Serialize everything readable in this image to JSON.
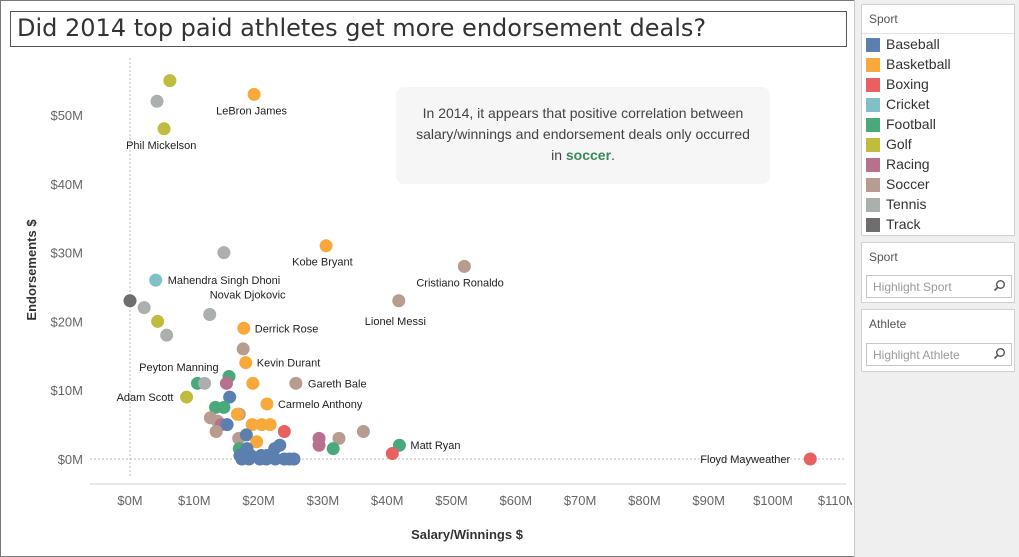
{
  "title": "Did 2014 top paid athletes get more endorsement deals?",
  "note": {
    "line1": "In 2014, it appears that positive correlation between",
    "line2": "salary/winnings and endorsement deals only occurred",
    "line3_pre": "in ",
    "line3_highlight": "soccer",
    "line3_post": "."
  },
  "legend": {
    "title": "Sport",
    "items": [
      {
        "label": "Baseball",
        "color": "#5b7fae"
      },
      {
        "label": "Basketball",
        "color": "#f9a93b"
      },
      {
        "label": "Boxing",
        "color": "#e8605f"
      },
      {
        "label": "Cricket",
        "color": "#82c0c8"
      },
      {
        "label": "Football",
        "color": "#4aa97a"
      },
      {
        "label": "Golf",
        "color": "#c0bc3d"
      },
      {
        "label": "Racing",
        "color": "#b8708f"
      },
      {
        "label": "Soccer",
        "color": "#b79c8f"
      },
      {
        "label": "Tennis",
        "color": "#abb0ad"
      },
      {
        "label": "Track",
        "color": "#6e6e6e"
      }
    ]
  },
  "filters": {
    "sport": {
      "title": "Sport",
      "placeholder": "Highlight Sport"
    },
    "athlete": {
      "title": "Athlete",
      "placeholder": "Highlight Athlete"
    }
  },
  "chart_data": {
    "type": "scatter",
    "xlabel": "Salary/Winnings $",
    "ylabel": "Endorsements $",
    "xlim": [
      -6,
      111
    ],
    "ylim": [
      -4,
      56
    ],
    "x_ticks": [
      0,
      10,
      20,
      30,
      40,
      50,
      60,
      70,
      80,
      90,
      100,
      110
    ],
    "x_tick_labels": [
      "$0M",
      "$10M",
      "$20M",
      "$30M",
      "$40M",
      "$50M",
      "$60M",
      "$70M",
      "$80M",
      "$90M",
      "$100M",
      "$110M"
    ],
    "y_ticks": [
      0,
      10,
      20,
      30,
      40,
      50
    ],
    "y_tick_labels": [
      "$0M",
      "$10M",
      "$20M",
      "$30M",
      "$40M",
      "$50M"
    ],
    "points": [
      {
        "x": 6.2,
        "y": 55,
        "sport": "Golf"
      },
      {
        "x": 4.2,
        "y": 52,
        "sport": "Tennis"
      },
      {
        "x": 19.3,
        "y": 53,
        "sport": "Basketball",
        "label": "LeBron James"
      },
      {
        "x": 5.3,
        "y": 48,
        "sport": "Golf",
        "label": "Phil Mickelson"
      },
      {
        "x": 14.6,
        "y": 30,
        "sport": "Tennis"
      },
      {
        "x": 30.5,
        "y": 31,
        "sport": "Basketball",
        "label": "Kobe Bryant"
      },
      {
        "x": 52,
        "y": 28,
        "sport": "Soccer",
        "label": "Cristiano Ronaldo"
      },
      {
        "x": 4,
        "y": 26,
        "sport": "Cricket",
        "label": "Mahendra Singh Dhoni"
      },
      {
        "x": 0,
        "y": 23,
        "sport": "Track"
      },
      {
        "x": 2.2,
        "y": 22,
        "sport": "Tennis"
      },
      {
        "x": 12.4,
        "y": 21,
        "sport": "Tennis",
        "label": "Novak Djokovic"
      },
      {
        "x": 41.8,
        "y": 23,
        "sport": "Soccer",
        "label": "Lionel Messi"
      },
      {
        "x": 4.3,
        "y": 20,
        "sport": "Golf"
      },
      {
        "x": 5.7,
        "y": 18,
        "sport": "Tennis"
      },
      {
        "x": 17.7,
        "y": 19,
        "sport": "Basketball",
        "label": "Derrick Rose"
      },
      {
        "x": 17.6,
        "y": 16,
        "sport": "Soccer",
        "label": "Peyton Manning"
      },
      {
        "x": 18,
        "y": 14,
        "sport": "Basketball",
        "label": "Kevin Durant"
      },
      {
        "x": 15.4,
        "y": 12,
        "sport": "Football"
      },
      {
        "x": 10.5,
        "y": 11,
        "sport": "Football"
      },
      {
        "x": 11.6,
        "y": 11,
        "sport": "Tennis"
      },
      {
        "x": 15,
        "y": 11,
        "sport": "Racing"
      },
      {
        "x": 19.1,
        "y": 11,
        "sport": "Basketball"
      },
      {
        "x": 25.8,
        "y": 11,
        "sport": "Soccer",
        "label": "Gareth Bale"
      },
      {
        "x": 8.8,
        "y": 9,
        "sport": "Golf",
        "label": "Adam Scott"
      },
      {
        "x": 15.5,
        "y": 9,
        "sport": "Baseball"
      },
      {
        "x": 21.3,
        "y": 8,
        "sport": "Basketball",
        "label": "Carmelo Anthony"
      },
      {
        "x": 13.3,
        "y": 7.5,
        "sport": "Football"
      },
      {
        "x": 14.6,
        "y": 7.5,
        "sport": "Football"
      },
      {
        "x": 17,
        "y": 6.5,
        "sport": "Soccer"
      },
      {
        "x": 16.7,
        "y": 6.5,
        "sport": "Basketball"
      },
      {
        "x": 12.5,
        "y": 6,
        "sport": "Soccer"
      },
      {
        "x": 13.6,
        "y": 5.5,
        "sport": "Soccer"
      },
      {
        "x": 14.2,
        "y": 5,
        "sport": "Racing"
      },
      {
        "x": 15.1,
        "y": 5,
        "sport": "Baseball"
      },
      {
        "x": 19,
        "y": 5,
        "sport": "Basketball"
      },
      {
        "x": 20.5,
        "y": 5,
        "sport": "Basketball"
      },
      {
        "x": 21.8,
        "y": 5,
        "sport": "Basketball"
      },
      {
        "x": 13.4,
        "y": 4,
        "sport": "Soccer"
      },
      {
        "x": 24,
        "y": 4,
        "sport": "Boxing"
      },
      {
        "x": 36.3,
        "y": 4,
        "sport": "Soccer"
      },
      {
        "x": 16.9,
        "y": 3,
        "sport": "Soccer"
      },
      {
        "x": 29.4,
        "y": 3,
        "sport": "Racing"
      },
      {
        "x": 32.5,
        "y": 3,
        "sport": "Soccer"
      },
      {
        "x": 18.1,
        "y": 3.5,
        "sport": "Baseball"
      },
      {
        "x": 19.7,
        "y": 2.5,
        "sport": "Basketball"
      },
      {
        "x": 29.4,
        "y": 2,
        "sport": "Racing"
      },
      {
        "x": 41.9,
        "y": 2,
        "sport": "Football",
        "label": "Matt Ryan"
      },
      {
        "x": 31.6,
        "y": 1.5,
        "sport": "Football"
      },
      {
        "x": 17,
        "y": 1.5,
        "sport": "Football"
      },
      {
        "x": 18.2,
        "y": 1.5,
        "sport": "Baseball"
      },
      {
        "x": 22.5,
        "y": 1.5,
        "sport": "Baseball"
      },
      {
        "x": 23.3,
        "y": 2,
        "sport": "Baseball"
      },
      {
        "x": 40.8,
        "y": 0.8,
        "sport": "Boxing"
      },
      {
        "x": 17.1,
        "y": 0.5,
        "sport": "Baseball"
      },
      {
        "x": 18.8,
        "y": 0.5,
        "sport": "Baseball"
      },
      {
        "x": 20.4,
        "y": 0.5,
        "sport": "Baseball"
      },
      {
        "x": 21.3,
        "y": 0.5,
        "sport": "Baseball"
      },
      {
        "x": 22.1,
        "y": 0.5,
        "sport": "Baseball"
      },
      {
        "x": 17.4,
        "y": 0,
        "sport": "Baseball"
      },
      {
        "x": 18.5,
        "y": 0,
        "sport": "Baseball"
      },
      {
        "x": 20.2,
        "y": 0,
        "sport": "Baseball"
      },
      {
        "x": 21.2,
        "y": 0,
        "sport": "Baseball"
      },
      {
        "x": 22.6,
        "y": 0,
        "sport": "Baseball"
      },
      {
        "x": 24,
        "y": 0,
        "sport": "Baseball"
      },
      {
        "x": 24.8,
        "y": 0,
        "sport": "Baseball"
      },
      {
        "x": 25.5,
        "y": 0,
        "sport": "Baseball"
      },
      {
        "x": 105.8,
        "y": 0,
        "sport": "Boxing",
        "label": "Floyd Mayweather"
      }
    ]
  }
}
